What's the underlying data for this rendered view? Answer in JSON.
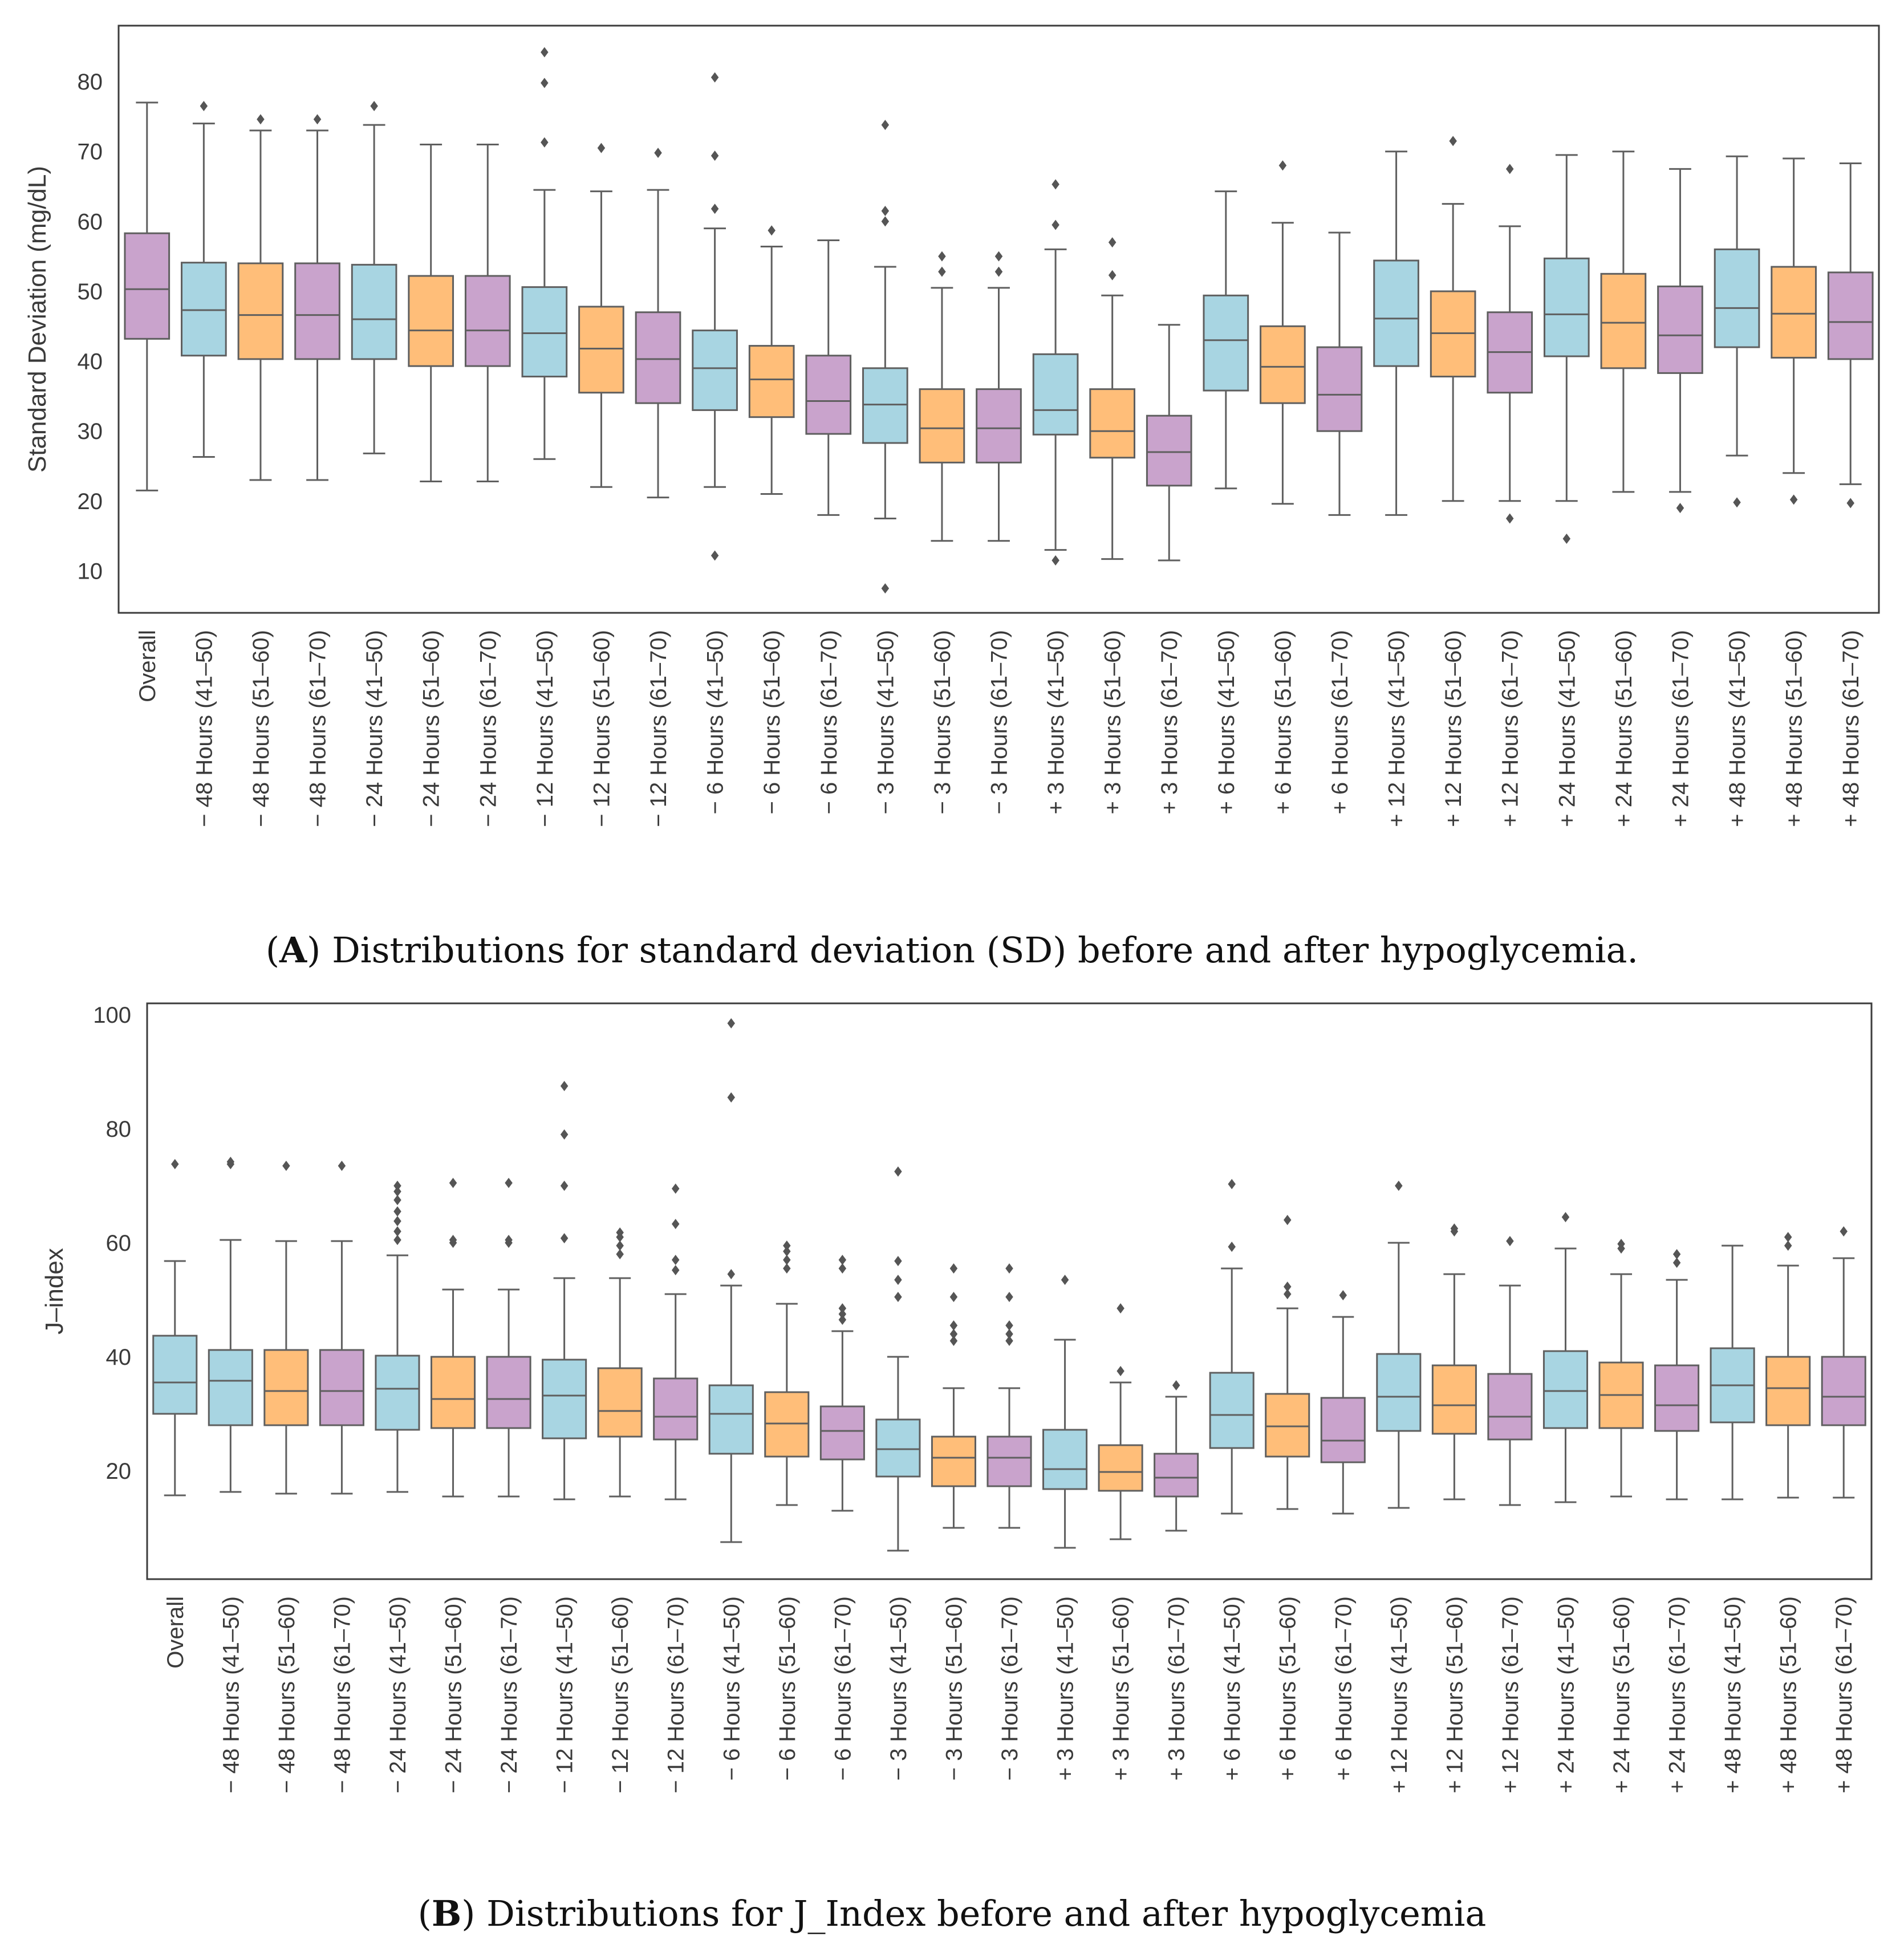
{
  "chart_data": [
    {
      "type": "boxplot",
      "panel": "A",
      "ylabel": "Standard Deviation (mg/dL)",
      "ylim": [
        4,
        88
      ],
      "yticks": [
        10,
        20,
        30,
        40,
        50,
        60,
        70,
        80
      ],
      "grid": false,
      "series_colors": {
        "41-50": "#a8d5e2",
        "51-60": "#ffbe79",
        "61-70": "#c9a3cc",
        "Overall": "#c9a3cc"
      },
      "caption_letter": "A",
      "caption_text": " Distributions for standard deviation (SD) before and after hypoglycemia.",
      "categories": [
        {
          "label": "Overall",
          "group": "Overall",
          "whislo": 21.5,
          "q1": 43.2,
          "med": 50.3,
          "q3": 58.3,
          "whishi": 77.0,
          "fliers": []
        },
        {
          "label": "− 48 Hours (41–50)",
          "group": "41-50",
          "whislo": 26.3,
          "q1": 40.8,
          "med": 47.3,
          "q3": 54.1,
          "whishi": 74.0,
          "fliers": [
            76.5
          ]
        },
        {
          "label": "− 48 Hours (51–60)",
          "group": "51-60",
          "whislo": 23.0,
          "q1": 40.3,
          "med": 46.6,
          "q3": 54.0,
          "whishi": 73.0,
          "fliers": [
            74.6
          ]
        },
        {
          "label": "− 48 Hours (61–70)",
          "group": "61-70",
          "whislo": 23.0,
          "q1": 40.3,
          "med": 46.6,
          "q3": 54.0,
          "whishi": 73.0,
          "fliers": [
            74.6
          ]
        },
        {
          "label": "− 24 Hours (41–50)",
          "group": "41-50",
          "whislo": 26.8,
          "q1": 40.3,
          "med": 46.0,
          "q3": 53.8,
          "whishi": 73.8,
          "fliers": [
            76.5
          ]
        },
        {
          "label": "− 24 Hours (51–60)",
          "group": "51-60",
          "whislo": 22.8,
          "q1": 39.3,
          "med": 44.4,
          "q3": 52.2,
          "whishi": 71.0,
          "fliers": []
        },
        {
          "label": "− 24 Hours (61–70)",
          "group": "61-70",
          "whislo": 22.8,
          "q1": 39.3,
          "med": 44.4,
          "q3": 52.2,
          "whishi": 71.0,
          "fliers": []
        },
        {
          "label": "− 12 Hours (41–50)",
          "group": "41-50",
          "whislo": 26.0,
          "q1": 37.8,
          "med": 44.0,
          "q3": 50.6,
          "whishi": 64.5,
          "fliers": [
            71.3,
            79.8,
            84.2
          ]
        },
        {
          "label": "− 12 Hours (51–60)",
          "group": "51-60",
          "whislo": 22.0,
          "q1": 35.5,
          "med": 41.8,
          "q3": 47.8,
          "whishi": 64.3,
          "fliers": [
            70.5
          ]
        },
        {
          "label": "− 12 Hours (61–70)",
          "group": "61-70",
          "whislo": 20.5,
          "q1": 34.0,
          "med": 40.3,
          "q3": 47.0,
          "whishi": 64.5,
          "fliers": [
            69.8
          ]
        },
        {
          "label": "− 6 Hours (41–50)",
          "group": "41-50",
          "whislo": 22.0,
          "q1": 33.0,
          "med": 39.0,
          "q3": 44.4,
          "whishi": 59.0,
          "fliers": [
            12.2,
            61.8,
            69.4,
            80.6
          ]
        },
        {
          "label": "− 6 Hours (51–60)",
          "group": "51-60",
          "whislo": 21.0,
          "q1": 32.0,
          "med": 37.4,
          "q3": 42.2,
          "whishi": 56.4,
          "fliers": [
            58.7
          ]
        },
        {
          "label": "− 6 Hours (61–70)",
          "group": "61-70",
          "whislo": 18.0,
          "q1": 29.6,
          "med": 34.3,
          "q3": 40.8,
          "whishi": 57.3,
          "fliers": []
        },
        {
          "label": "− 3 Hours (41–50)",
          "group": "41-50",
          "whislo": 17.5,
          "q1": 28.3,
          "med": 33.8,
          "q3": 39.0,
          "whishi": 53.5,
          "fliers": [
            7.5,
            60.0,
            61.5,
            73.8
          ]
        },
        {
          "label": "− 3 Hours (51–60)",
          "group": "51-60",
          "whislo": 14.3,
          "q1": 25.5,
          "med": 30.4,
          "q3": 36.0,
          "whishi": 50.5,
          "fliers": [
            52.8,
            55.0
          ]
        },
        {
          "label": "− 3 Hours (61–70)",
          "group": "61-70",
          "whislo": 14.3,
          "q1": 25.5,
          "med": 30.4,
          "q3": 36.0,
          "whishi": 50.5,
          "fliers": [
            52.8,
            55.0
          ]
        },
        {
          "label": "+ 3 Hours (41–50)",
          "group": "41-50",
          "whislo": 13.0,
          "q1": 29.5,
          "med": 33.0,
          "q3": 41.0,
          "whishi": 56.0,
          "fliers": [
            11.5,
            59.5,
            65.3
          ]
        },
        {
          "label": "+ 3 Hours (51–60)",
          "group": "51-60",
          "whislo": 11.7,
          "q1": 26.2,
          "med": 30.0,
          "q3": 36.0,
          "whishi": 49.4,
          "fliers": [
            52.3,
            57.0
          ]
        },
        {
          "label": "+ 3 Hours (61–70)",
          "group": "61-70",
          "whislo": 11.5,
          "q1": 22.2,
          "med": 27.0,
          "q3": 32.2,
          "whishi": 45.2,
          "fliers": []
        },
        {
          "label": "+ 6 Hours (41–50)",
          "group": "41-50",
          "whislo": 21.8,
          "q1": 35.8,
          "med": 43.0,
          "q3": 49.4,
          "whishi": 64.3,
          "fliers": []
        },
        {
          "label": "+ 6 Hours (51–60)",
          "group": "51-60",
          "whislo": 19.6,
          "q1": 34.0,
          "med": 39.2,
          "q3": 45.0,
          "whishi": 59.8,
          "fliers": [
            68.0
          ]
        },
        {
          "label": "+ 6 Hours (61–70)",
          "group": "61-70",
          "whislo": 18.0,
          "q1": 30.0,
          "med": 35.2,
          "q3": 42.0,
          "whishi": 58.4,
          "fliers": []
        },
        {
          "label": "+ 12 Hours (41–50)",
          "group": "41-50",
          "whislo": 18.0,
          "q1": 39.3,
          "med": 46.1,
          "q3": 54.4,
          "whishi": 70.0,
          "fliers": []
        },
        {
          "label": "+ 12 Hours (51–60)",
          "group": "51-60",
          "whislo": 20.0,
          "q1": 37.8,
          "med": 44.0,
          "q3": 50.0,
          "whishi": 62.5,
          "fliers": [
            71.5
          ]
        },
        {
          "label": "+ 12 Hours (61–70)",
          "group": "61-70",
          "whislo": 20.0,
          "q1": 35.5,
          "med": 41.3,
          "q3": 47.0,
          "whishi": 59.3,
          "fliers": [
            17.5,
            67.5
          ]
        },
        {
          "label": "+ 24 Hours (41–50)",
          "group": "41-50",
          "whislo": 20.0,
          "q1": 40.7,
          "med": 46.7,
          "q3": 54.7,
          "whishi": 69.5,
          "fliers": [
            14.6
          ]
        },
        {
          "label": "+ 24 Hours (51–60)",
          "group": "51-60",
          "whislo": 21.3,
          "q1": 39.0,
          "med": 45.5,
          "q3": 52.5,
          "whishi": 70.0,
          "fliers": []
        },
        {
          "label": "+ 24 Hours (61–70)",
          "group": "61-70",
          "whislo": 21.3,
          "q1": 38.3,
          "med": 43.7,
          "q3": 50.7,
          "whishi": 67.5,
          "fliers": [
            19.0
          ]
        },
        {
          "label": "+ 48 Hours (41–50)",
          "group": "41-50",
          "whislo": 26.5,
          "q1": 42.0,
          "med": 47.6,
          "q3": 56.0,
          "whishi": 69.3,
          "fliers": [
            19.8
          ]
        },
        {
          "label": "+ 48 Hours (51–60)",
          "group": "51-60",
          "whislo": 24.0,
          "q1": 40.5,
          "med": 46.8,
          "q3": 53.5,
          "whishi": 69.0,
          "fliers": [
            20.2
          ]
        },
        {
          "label": "+ 48 Hours (61–70)",
          "group": "61-70",
          "whislo": 22.4,
          "q1": 40.3,
          "med": 45.6,
          "q3": 52.7,
          "whishi": 68.3,
          "fliers": [
            19.7
          ]
        }
      ]
    },
    {
      "type": "boxplot",
      "panel": "B",
      "ylabel": "J–index",
      "ylim": [
        1,
        102
      ],
      "yticks": [
        20,
        40,
        60,
        80,
        100
      ],
      "grid": false,
      "series_colors": {
        "41-50": "#a8d5e2",
        "51-60": "#ffbe79",
        "61-70": "#c9a3cc",
        "Overall": "#a8d5e2"
      },
      "caption_letter": "B",
      "caption_text": " Distributions for J_Index before and after hypoglycemia",
      "categories": [
        {
          "label": "Overall",
          "group": "Overall",
          "whislo": 15.7,
          "q1": 30.0,
          "med": 35.5,
          "q3": 43.7,
          "whishi": 56.8,
          "fliers": [
            73.8
          ]
        },
        {
          "label": "− 48 Hours (41–50)",
          "group": "41-50",
          "whislo": 16.3,
          "q1": 28.0,
          "med": 35.8,
          "q3": 41.2,
          "whishi": 60.5,
          "fliers": [
            73.8,
            74.2
          ]
        },
        {
          "label": "− 48 Hours (51–60)",
          "group": "51-60",
          "whislo": 16.0,
          "q1": 28.0,
          "med": 34.0,
          "q3": 41.2,
          "whishi": 60.3,
          "fliers": [
            73.5
          ]
        },
        {
          "label": "− 48 Hours (61–70)",
          "group": "61-70",
          "whislo": 16.0,
          "q1": 28.0,
          "med": 34.0,
          "q3": 41.2,
          "whishi": 60.3,
          "fliers": [
            73.5
          ]
        },
        {
          "label": "− 24 Hours (41–50)",
          "group": "41-50",
          "whislo": 16.3,
          "q1": 27.2,
          "med": 34.4,
          "q3": 40.2,
          "whishi": 57.8,
          "fliers": [
            60.5,
            62.0,
            63.8,
            65.5,
            67.5,
            69.0,
            70.0
          ]
        },
        {
          "label": "− 24 Hours (51–60)",
          "group": "51-60",
          "whislo": 15.5,
          "q1": 27.5,
          "med": 32.6,
          "q3": 40.0,
          "whishi": 51.8,
          "fliers": [
            60.0,
            60.5,
            70.5
          ]
        },
        {
          "label": "− 24 Hours (61–70)",
          "group": "61-70",
          "whislo": 15.5,
          "q1": 27.5,
          "med": 32.6,
          "q3": 40.0,
          "whishi": 51.8,
          "fliers": [
            60.0,
            60.5,
            70.5
          ]
        },
        {
          "label": "− 12 Hours (41–50)",
          "group": "41-50",
          "whislo": 15.0,
          "q1": 25.7,
          "med": 33.2,
          "q3": 39.5,
          "whishi": 53.8,
          "fliers": [
            60.8,
            70.0,
            79.0,
            87.5
          ]
        },
        {
          "label": "− 12 Hours (51–60)",
          "group": "51-60",
          "whislo": 15.5,
          "q1": 26.0,
          "med": 30.5,
          "q3": 38.0,
          "whishi": 53.8,
          "fliers": [
            58.0,
            59.5,
            61.0,
            61.8
          ]
        },
        {
          "label": "− 12 Hours (61–70)",
          "group": "61-70",
          "whislo": 15.0,
          "q1": 25.5,
          "med": 29.5,
          "q3": 36.2,
          "whishi": 51.0,
          "fliers": [
            55.2,
            57.0,
            63.3,
            69.5
          ]
        },
        {
          "label": "− 6 Hours (41–50)",
          "group": "41-50",
          "whislo": 7.5,
          "q1": 23.0,
          "med": 30.0,
          "q3": 35.0,
          "whishi": 52.5,
          "fliers": [
            54.5,
            85.5,
            98.5
          ]
        },
        {
          "label": "− 6 Hours (51–60)",
          "group": "51-60",
          "whislo": 14.0,
          "q1": 22.5,
          "med": 28.3,
          "q3": 33.8,
          "whishi": 49.3,
          "fliers": [
            55.5,
            57.0,
            58.5,
            59.5
          ]
        },
        {
          "label": "− 6 Hours (61–70)",
          "group": "61-70",
          "whislo": 13.0,
          "q1": 22.0,
          "med": 27.0,
          "q3": 31.3,
          "whishi": 44.5,
          "fliers": [
            46.5,
            47.5,
            48.5,
            55.5,
            57.0
          ]
        },
        {
          "label": "− 3 Hours (41–50)",
          "group": "41-50",
          "whislo": 6.0,
          "q1": 19.0,
          "med": 23.8,
          "q3": 29.0,
          "whishi": 40.0,
          "fliers": [
            50.5,
            53.5,
            56.8,
            72.5
          ]
        },
        {
          "label": "− 3 Hours (51–60)",
          "group": "51-60",
          "whislo": 10.0,
          "q1": 17.3,
          "med": 22.3,
          "q3": 26.0,
          "whishi": 34.5,
          "fliers": [
            42.8,
            44.0,
            45.5,
            50.5,
            55.5
          ]
        },
        {
          "label": "− 3 Hours (61–70)",
          "group": "61-70",
          "whislo": 10.0,
          "q1": 17.3,
          "med": 22.3,
          "q3": 26.0,
          "whishi": 34.5,
          "fliers": [
            42.8,
            44.0,
            45.5,
            50.5,
            55.5
          ]
        },
        {
          "label": "+ 3 Hours (41–50)",
          "group": "41-50",
          "whislo": 6.5,
          "q1": 16.8,
          "med": 20.3,
          "q3": 27.2,
          "whishi": 43.0,
          "fliers": [
            53.5
          ]
        },
        {
          "label": "+ 3 Hours (51–60)",
          "group": "51-60",
          "whislo": 8.0,
          "q1": 16.5,
          "med": 19.8,
          "q3": 24.5,
          "whishi": 35.5,
          "fliers": [
            37.5,
            48.5
          ]
        },
        {
          "label": "+ 3 Hours (61–70)",
          "group": "61-70",
          "whislo": 9.5,
          "q1": 15.5,
          "med": 18.8,
          "q3": 23.0,
          "whishi": 33.0,
          "fliers": [
            35.0
          ]
        },
        {
          "label": "+ 6 Hours (41–50)",
          "group": "41-50",
          "whislo": 12.5,
          "q1": 24.0,
          "med": 29.8,
          "q3": 37.2,
          "whishi": 55.5,
          "fliers": [
            59.3,
            70.3
          ]
        },
        {
          "label": "+ 6 Hours (51–60)",
          "group": "51-60",
          "whislo": 13.3,
          "q1": 22.5,
          "med": 27.8,
          "q3": 33.5,
          "whishi": 48.5,
          "fliers": [
            51.0,
            52.3,
            64.0
          ]
        },
        {
          "label": "+ 6 Hours (61–70)",
          "group": "61-70",
          "whislo": 12.5,
          "q1": 21.5,
          "med": 25.3,
          "q3": 32.8,
          "whishi": 47.0,
          "fliers": [
            50.8
          ]
        },
        {
          "label": "+ 12 Hours (41–50)",
          "group": "41-50",
          "whislo": 13.5,
          "q1": 27.0,
          "med": 33.0,
          "q3": 40.5,
          "whishi": 60.0,
          "fliers": [
            70.0
          ]
        },
        {
          "label": "+ 12 Hours (51–60)",
          "group": "51-60",
          "whislo": 15.0,
          "q1": 26.5,
          "med": 31.5,
          "q3": 38.5,
          "whishi": 54.5,
          "fliers": [
            62.0,
            62.5
          ]
        },
        {
          "label": "+ 12 Hours (61–70)",
          "group": "61-70",
          "whislo": 14.0,
          "q1": 25.5,
          "med": 29.5,
          "q3": 37.0,
          "whishi": 52.5,
          "fliers": [
            60.3
          ]
        },
        {
          "label": "+ 24 Hours (41–50)",
          "group": "41-50",
          "whislo": 14.5,
          "q1": 27.5,
          "med": 34.0,
          "q3": 41.0,
          "whishi": 59.0,
          "fliers": [
            64.5
          ]
        },
        {
          "label": "+ 24 Hours (51–60)",
          "group": "51-60",
          "whislo": 15.5,
          "q1": 27.5,
          "med": 33.3,
          "q3": 39.0,
          "whishi": 54.5,
          "fliers": [
            59.0,
            59.8
          ]
        },
        {
          "label": "+ 24 Hours (61–70)",
          "group": "61-70",
          "whislo": 15.0,
          "q1": 27.0,
          "med": 31.5,
          "q3": 38.5,
          "whishi": 53.5,
          "fliers": [
            56.5,
            58.0
          ]
        },
        {
          "label": "+ 48 Hours (41–50)",
          "group": "41-50",
          "whislo": 15.0,
          "q1": 28.5,
          "med": 35.0,
          "q3": 41.5,
          "whishi": 59.5,
          "fliers": []
        },
        {
          "label": "+ 48 Hours (51–60)",
          "group": "51-60",
          "whislo": 15.3,
          "q1": 28.0,
          "med": 34.5,
          "q3": 40.0,
          "whishi": 56.0,
          "fliers": [
            59.5,
            61.0
          ]
        },
        {
          "label": "+ 48 Hours (61–70)",
          "group": "61-70",
          "whislo": 15.3,
          "q1": 28.0,
          "med": 33.0,
          "q3": 40.0,
          "whishi": 57.3,
          "fliers": [
            62.0
          ]
        }
      ]
    }
  ]
}
